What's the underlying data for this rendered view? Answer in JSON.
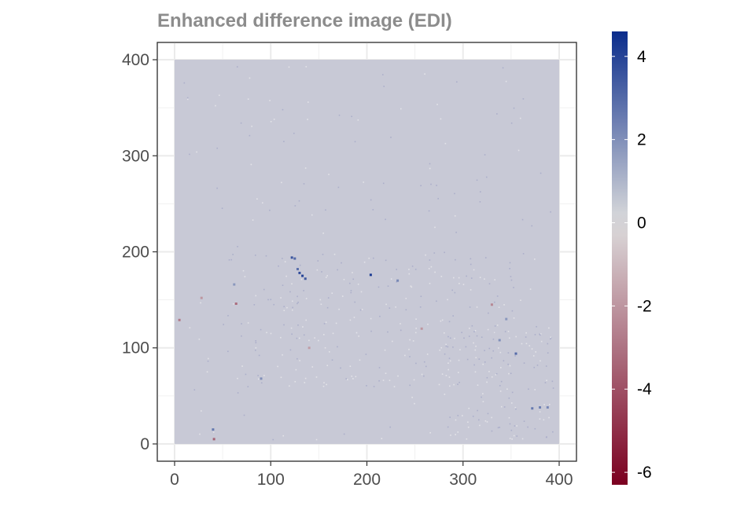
{
  "chart_data": {
    "type": "heatmap",
    "title": "Enhanced difference image (EDI)",
    "xlabel": "",
    "ylabel": "",
    "xlim": [
      -18,
      418
    ],
    "ylim": [
      -18,
      418
    ],
    "x_ticks": [
      0,
      100,
      200,
      300,
      400
    ],
    "y_ticks": [
      0,
      100,
      200,
      300,
      400
    ],
    "grid": true,
    "raster_extent": {
      "x": [
        0,
        400
      ],
      "y": [
        0,
        400
      ]
    },
    "background_value": 0.45,
    "colorbar": {
      "range": [
        -6.3,
        4.6
      ],
      "ticks": [
        4,
        2,
        0,
        -2,
        -4,
        -6
      ],
      "colors": {
        "low": "#7b0020",
        "mid": "#dcdcdc",
        "high": "#0a2c8c"
      },
      "fill_color": "#c8c9d6"
    },
    "highlights": [
      {
        "x": 122,
        "y": 194,
        "v": 3.5
      },
      {
        "x": 125,
        "y": 193,
        "v": 3.0
      },
      {
        "x": 130,
        "y": 178,
        "v": 3.8
      },
      {
        "x": 133,
        "y": 175,
        "v": 4.0
      },
      {
        "x": 136,
        "y": 172,
        "v": 3.4
      },
      {
        "x": 128,
        "y": 182,
        "v": 2.8
      },
      {
        "x": 204,
        "y": 176,
        "v": 4.2
      },
      {
        "x": 232,
        "y": 170,
        "v": 2.2
      },
      {
        "x": 355,
        "y": 94,
        "v": 3.0
      },
      {
        "x": 372,
        "y": 37,
        "v": 2.6
      },
      {
        "x": 380,
        "y": 38,
        "v": 2.4
      },
      {
        "x": 388,
        "y": 38,
        "v": 2.2
      },
      {
        "x": 40,
        "y": 15,
        "v": 2.6
      },
      {
        "x": 41,
        "y": 5,
        "v": -3.5
      },
      {
        "x": 62,
        "y": 166,
        "v": 1.8
      },
      {
        "x": 64,
        "y": 146,
        "v": -3.2
      },
      {
        "x": 5,
        "y": 129,
        "v": -2.8
      },
      {
        "x": 28,
        "y": 152,
        "v": -2.0
      },
      {
        "x": 330,
        "y": 145,
        "v": -2.4
      },
      {
        "x": 90,
        "y": 68,
        "v": 2.0
      },
      {
        "x": 345,
        "y": 130,
        "v": 1.8
      },
      {
        "x": 338,
        "y": 108,
        "v": 2.0
      },
      {
        "x": 140,
        "y": 100,
        "v": -1.8
      },
      {
        "x": 257,
        "y": 120,
        "v": -2.0
      }
    ]
  }
}
